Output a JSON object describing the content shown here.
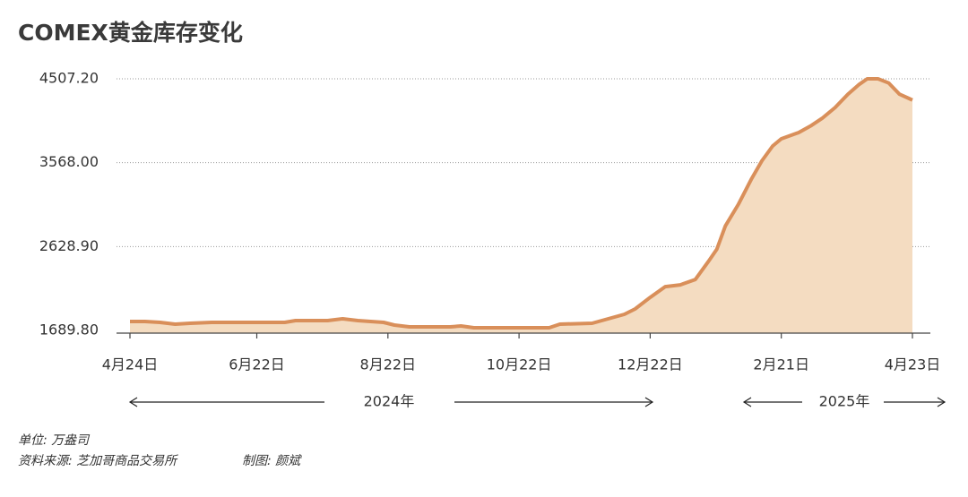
{
  "chart_data": {
    "type": "area",
    "title": "COMEX黄金库存变化",
    "x": [
      "2024-04-24",
      "2024-05-01",
      "2024-05-08",
      "2024-05-15",
      "2024-05-22",
      "2024-06-01",
      "2024-06-22",
      "2024-07-05",
      "2024-07-10",
      "2024-07-25",
      "2024-08-01",
      "2024-08-08",
      "2024-08-20",
      "2024-08-25",
      "2024-09-01",
      "2024-09-20",
      "2024-09-25",
      "2024-10-01",
      "2024-10-22",
      "2024-11-05",
      "2024-11-10",
      "2024-11-25",
      "2024-12-01",
      "2024-12-10",
      "2024-12-15",
      "2024-12-22",
      "2024-12-29",
      "2025-01-05",
      "2025-01-12",
      "2025-01-18",
      "2025-01-22",
      "2025-01-26",
      "2025-02-01",
      "2025-02-07",
      "2025-02-12",
      "2025-02-17",
      "2025-02-21",
      "2025-03-01",
      "2025-03-07",
      "2025-03-12",
      "2025-03-18",
      "2025-03-24",
      "2025-03-29",
      "2025-04-02",
      "2025-04-07",
      "2025-04-12",
      "2025-04-17",
      "2025-04-23"
    ],
    "values": [
      1790,
      1790,
      1780,
      1760,
      1770,
      1780,
      1780,
      1780,
      1800,
      1800,
      1820,
      1800,
      1780,
      1750,
      1730,
      1730,
      1740,
      1720,
      1720,
      1720,
      1760,
      1770,
      1810,
      1870,
      1930,
      2060,
      2180,
      2200,
      2260,
      2460,
      2600,
      2860,
      3100,
      3380,
      3590,
      3755,
      3835,
      3905,
      3985,
      4065,
      4185,
      4335,
      4440,
      4507,
      4507,
      4460,
      4335,
      4270
    ],
    "color": "#d98f5a",
    "fill": "#f4dcc1",
    "xlim": [
      "2024-04-24",
      "2025-04-23"
    ],
    "xticks": [
      {
        "value": "2024-04-24",
        "label": "4月24日"
      },
      {
        "value": "2024-06-22",
        "label": "6月22日"
      },
      {
        "value": "2024-08-22",
        "label": "8月22日"
      },
      {
        "value": "2024-10-22",
        "label": "10月22日"
      },
      {
        "value": "2024-12-22",
        "label": "12月22日"
      },
      {
        "value": "2025-02-21",
        "label": "2月21日"
      },
      {
        "value": "2025-04-23",
        "label": "4月23日"
      }
    ],
    "ylim": [
      1689.8,
      4507.2
    ],
    "yticks": [
      {
        "value": 1689.8,
        "label": "1689.80"
      },
      {
        "value": 2628.9,
        "label": "2628.90"
      },
      {
        "value": 3568,
        "label": "3568.00"
      },
      {
        "value": 4507.2,
        "label": "4507.20"
      }
    ],
    "grid": true,
    "annotations": [
      "2024年",
      "2025年"
    ],
    "notes": [
      "单位: 万盎司",
      "资料来源: 芝加哥商品交易所",
      "制图: 颜斌"
    ]
  }
}
